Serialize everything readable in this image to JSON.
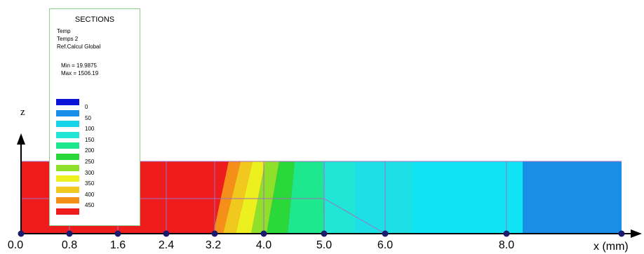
{
  "legend": {
    "title": "SECTIONS",
    "line1": "Temp",
    "line2": "Temps 2",
    "line3": "Ref.Calcul Global",
    "min_text": "Min = 19.9875",
    "max_text": "Max = 1506.19",
    "levels": [
      {
        "label": "0",
        "color": "#0a14d8"
      },
      {
        "label": "50",
        "color": "#1a8ee6"
      },
      {
        "label": "100",
        "color": "#18d2e8"
      },
      {
        "label": "150",
        "color": "#20e6d6"
      },
      {
        "label": "200",
        "color": "#1ee88e"
      },
      {
        "label": "250",
        "color": "#2ad83a"
      },
      {
        "label": "300",
        "color": "#8ee02a"
      },
      {
        "label": "350",
        "color": "#ecf01e"
      },
      {
        "label": "400",
        "color": "#f0c81e"
      },
      {
        "label": "450",
        "color": "#f4901a"
      },
      {
        "label": "",
        "color": "#ee1c1c"
      }
    ]
  },
  "axes": {
    "z_label": "z",
    "x_label": "x (mm)",
    "x_ticks": [
      "0.0",
      "0.8",
      "1.6",
      "2.4",
      "3.2",
      "4.0",
      "5.0",
      "6.0",
      "8.0"
    ]
  },
  "colors": {
    "hot": "#ee1c1c",
    "mesh_line": "#a070c0",
    "node": "#1a1a6e",
    "axis": "#000000"
  }
}
